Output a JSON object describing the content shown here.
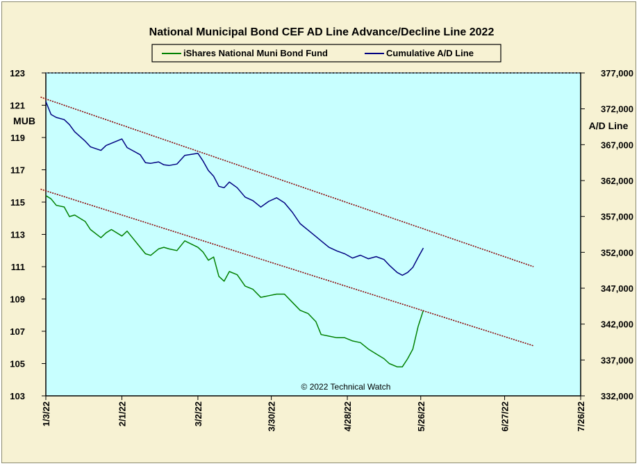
{
  "chart_data": {
    "type": "line",
    "title": "National Municipal Bond CEF AD Line Advance/Decline Line 2022",
    "copyright": "© 2022 Technical Watch",
    "ylabel_left": "MUB",
    "ylabel_right": "A/D Line",
    "ylim_left": [
      103,
      123
    ],
    "ylim_right": [
      332000,
      377000
    ],
    "yticks_left": [
      "123",
      "121",
      "119",
      "117",
      "115",
      "113",
      "111",
      "109",
      "107",
      "105",
      "103"
    ],
    "yticks_right": [
      "377,000",
      "372,000",
      "367,000",
      "362,000",
      "357,000",
      "352,000",
      "347,000",
      "342,000",
      "337,000",
      "332,000"
    ],
    "xlim": [
      "2022-01-03",
      "2022-07-26"
    ],
    "xticks": [
      "1/3/22",
      "2/1/22",
      "3/2/22",
      "3/30/22",
      "4/28/22",
      "5/26/22",
      "6/27/22",
      "7/26/22"
    ],
    "xtick_dates": [
      "2022-01-03",
      "2022-02-01",
      "2022-03-02",
      "2022-03-30",
      "2022-04-28",
      "2022-05-26",
      "2022-06-27",
      "2022-07-26"
    ],
    "grid": false,
    "legend_position": "top",
    "colors": {
      "plot_bg": "#c8ffff",
      "frame_bg": "#f7f2d3",
      "mub": "#008000",
      "ad": "#000080",
      "trend": "#8b0000"
    },
    "series": [
      {
        "name": "iShares National Muni Bond Fund",
        "axis": "left",
        "color": "#008000",
        "x": [
          "2022-01-03",
          "2022-01-05",
          "2022-01-07",
          "2022-01-10",
          "2022-01-12",
          "2022-01-14",
          "2022-01-18",
          "2022-01-20",
          "2022-01-24",
          "2022-01-26",
          "2022-01-28",
          "2022-02-01",
          "2022-02-03",
          "2022-02-05",
          "2022-02-08",
          "2022-02-10",
          "2022-02-12",
          "2022-02-15",
          "2022-02-17",
          "2022-02-19",
          "2022-02-22",
          "2022-02-25",
          "2022-03-02",
          "2022-03-04",
          "2022-03-06",
          "2022-03-08",
          "2022-03-10",
          "2022-03-12",
          "2022-03-14",
          "2022-03-17",
          "2022-03-20",
          "2022-03-23",
          "2022-03-26",
          "2022-03-29",
          "2022-04-01",
          "2022-04-04",
          "2022-04-07",
          "2022-04-10",
          "2022-04-13",
          "2022-04-16",
          "2022-04-18",
          "2022-04-21",
          "2022-04-24",
          "2022-04-27",
          "2022-04-30",
          "2022-05-03",
          "2022-05-06",
          "2022-05-09",
          "2022-05-12",
          "2022-05-14",
          "2022-05-17",
          "2022-05-19",
          "2022-05-21",
          "2022-05-23",
          "2022-05-25",
          "2022-05-27"
        ],
        "y": [
          115.4,
          115.2,
          114.8,
          114.7,
          114.1,
          114.2,
          113.8,
          113.3,
          112.8,
          113.1,
          113.3,
          112.9,
          113.2,
          112.8,
          112.2,
          111.8,
          111.7,
          112.1,
          112.2,
          112.1,
          112.0,
          112.6,
          112.2,
          111.9,
          111.4,
          111.6,
          110.4,
          110.1,
          110.7,
          110.5,
          109.8,
          109.6,
          109.1,
          109.2,
          109.3,
          109.3,
          108.8,
          108.3,
          108.1,
          107.6,
          106.8,
          106.7,
          106.6,
          106.6,
          106.4,
          106.3,
          105.9,
          105.6,
          105.3,
          105.0,
          104.8,
          104.8,
          105.3,
          105.9,
          107.3,
          108.3
        ]
      },
      {
        "name": "Cumulative A/D Line",
        "axis": "right",
        "color": "#000080",
        "x": [
          "2022-01-03",
          "2022-01-05",
          "2022-01-07",
          "2022-01-10",
          "2022-01-12",
          "2022-01-14",
          "2022-01-18",
          "2022-01-20",
          "2022-01-24",
          "2022-01-26",
          "2022-01-28",
          "2022-02-01",
          "2022-02-03",
          "2022-02-05",
          "2022-02-08",
          "2022-02-10",
          "2022-02-12",
          "2022-02-15",
          "2022-02-17",
          "2022-02-19",
          "2022-02-22",
          "2022-02-25",
          "2022-03-02",
          "2022-03-04",
          "2022-03-06",
          "2022-03-08",
          "2022-03-10",
          "2022-03-12",
          "2022-03-14",
          "2022-03-17",
          "2022-03-20",
          "2022-03-23",
          "2022-03-26",
          "2022-03-29",
          "2022-04-01",
          "2022-04-04",
          "2022-04-07",
          "2022-04-10",
          "2022-04-13",
          "2022-04-16",
          "2022-04-18",
          "2022-04-21",
          "2022-04-24",
          "2022-04-27",
          "2022-04-30",
          "2022-05-03",
          "2022-05-06",
          "2022-05-09",
          "2022-05-12",
          "2022-05-14",
          "2022-05-17",
          "2022-05-19",
          "2022-05-21",
          "2022-05-23",
          "2022-05-25",
          "2022-05-27"
        ],
        "y": [
          373000,
          371200,
          370800,
          370500,
          369800,
          368800,
          367500,
          366700,
          366200,
          366900,
          367200,
          367800,
          366600,
          366200,
          365600,
          364500,
          364400,
          364600,
          364200,
          364100,
          364300,
          365500,
          365800,
          364700,
          363400,
          362600,
          361200,
          361000,
          361800,
          361000,
          359700,
          359200,
          358300,
          359100,
          359600,
          358900,
          357600,
          356000,
          355100,
          354200,
          353600,
          352700,
          352200,
          351800,
          351200,
          351600,
          351100,
          351400,
          351000,
          350200,
          349200,
          348800,
          349200,
          349900,
          351300,
          352600
        ]
      },
      {
        "name": "",
        "axis": "left",
        "style": "dotted",
        "x": [
          "2022-01-01",
          "2022-07-08"
        ],
        "y": [
          121.5,
          111.0
        ]
      },
      {
        "name": "",
        "axis": "left",
        "style": "dotted",
        "x": [
          "2022-01-01",
          "2022-07-08"
        ],
        "y": [
          115.8,
          106.1
        ]
      }
    ]
  }
}
